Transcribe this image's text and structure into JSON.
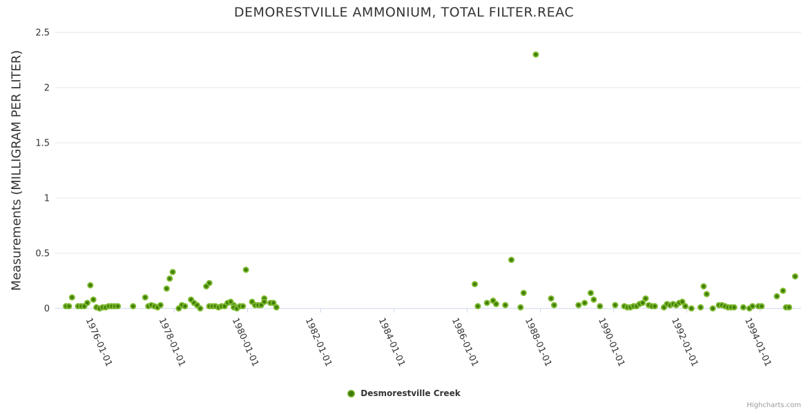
{
  "chart": {
    "title": "DEMORESTVILLE AMMONIUM, TOTAL FILTER.REAC",
    "credits": "Highcharts.com"
  },
  "legend": {
    "label": "Desmorestville Creek"
  },
  "colors": {
    "marker_outer": "#7cb82e",
    "marker_inner": "#3d7a06",
    "grid": "#e6e6e6",
    "axis_line": "#ccd6eb",
    "title_text": "#333333",
    "axis_text": "#333333",
    "credits_text": "#999999",
    "background": "#ffffff"
  },
  "chart_data": {
    "type": "scatter",
    "title": "DEMORESTVILLE AMMONIUM, TOTAL FILTER.REAC",
    "xlabel": "",
    "ylabel": "Measurements (MILLIGRAM PER LITER)",
    "legend_position": "bottom-center",
    "grid": true,
    "x_tick_labels": [
      "1976-01-01",
      "1978-01-01",
      "1980-01-01",
      "1982-01-01",
      "1984-01-01",
      "1986-01-01",
      "1988-01-01",
      "1990-01-01",
      "1992-01-01",
      "1994-01-01"
    ],
    "x_tick_years": [
      1976,
      1978,
      1980,
      1982,
      1984,
      1986,
      1988,
      1990,
      1992,
      1994
    ],
    "y_ticks": [
      0,
      0.5,
      1,
      1.5,
      2,
      2.5
    ],
    "ylim": [
      0,
      2.5
    ],
    "xlim_years": [
      1974.75,
      1995.12
    ],
    "series": [
      {
        "name": "Desmorestville Creek",
        "points": [
          [
            "1975-01",
            0.02
          ],
          [
            "1975-02",
            0.02
          ],
          [
            "1975-03",
            0.1
          ],
          [
            "1975-05",
            0.02
          ],
          [
            "1975-06",
            0.02
          ],
          [
            "1975-07",
            0.02
          ],
          [
            "1975-08",
            0.05
          ],
          [
            "1975-09",
            0.21
          ],
          [
            "1975-10",
            0.08
          ],
          [
            "1975-11",
            0.01
          ],
          [
            "1975-12",
            0
          ],
          [
            "1976-01",
            0.01
          ],
          [
            "1976-02",
            0.01
          ],
          [
            "1976-03",
            0.02
          ],
          [
            "1976-04",
            0.02
          ],
          [
            "1976-05",
            0.02
          ],
          [
            "1976-06",
            0.02
          ],
          [
            "1976-11",
            0.02
          ],
          [
            "1977-03",
            0.1
          ],
          [
            "1977-04",
            0.02
          ],
          [
            "1977-05",
            0.03
          ],
          [
            "1977-06",
            0.02
          ],
          [
            "1977-07",
            0.01
          ],
          [
            "1977-08",
            0.03
          ],
          [
            "1977-10",
            0.18
          ],
          [
            "1977-11",
            0.27
          ],
          [
            "1977-12",
            0.33
          ],
          [
            "1978-02",
            0
          ],
          [
            "1978-03",
            0.03
          ],
          [
            "1978-04",
            0.02
          ],
          [
            "1978-06",
            0.08
          ],
          [
            "1978-07",
            0.05
          ],
          [
            "1978-08",
            0.03
          ],
          [
            "1978-09",
            0
          ],
          [
            "1978-11",
            0.2
          ],
          [
            "1978-12",
            0.23
          ],
          [
            "1978-12",
            0.02
          ],
          [
            "1979-01",
            0.02
          ],
          [
            "1979-02",
            0.02
          ],
          [
            "1979-03",
            0.01
          ],
          [
            "1979-04",
            0.02
          ],
          [
            "1979-05",
            0.02
          ],
          [
            "1979-06",
            0.05
          ],
          [
            "1979-07",
            0.06
          ],
          [
            "1979-08",
            0.03
          ],
          [
            "1979-08",
            0.01
          ],
          [
            "1979-09",
            0
          ],
          [
            "1979-10",
            0.02
          ],
          [
            "1979-11",
            0.02
          ],
          [
            "1979-12",
            0.35
          ],
          [
            "1980-02",
            0.06
          ],
          [
            "1980-03",
            0.03
          ],
          [
            "1980-04",
            0.03
          ],
          [
            "1980-05",
            0.03
          ],
          [
            "1980-06",
            0.09
          ],
          [
            "1980-06",
            0.06
          ],
          [
            "1980-08",
            0.05
          ],
          [
            "1980-09",
            0.05
          ],
          [
            "1980-10",
            0.01
          ],
          [
            "1986-03",
            0.22
          ],
          [
            "1986-04",
            0.02
          ],
          [
            "1986-07",
            0.05
          ],
          [
            "1986-09",
            0.07
          ],
          [
            "1986-10",
            0.04
          ],
          [
            "1987-01",
            0.03
          ],
          [
            "1987-03",
            0.44
          ],
          [
            "1987-06",
            0.01
          ],
          [
            "1987-07",
            0.14
          ],
          [
            "1987-11",
            2.3
          ],
          [
            "1988-04",
            0.09
          ],
          [
            "1988-05",
            0.03
          ],
          [
            "1989-01",
            0.03
          ],
          [
            "1989-03",
            0.05
          ],
          [
            "1989-05",
            0.14
          ],
          [
            "1989-06",
            0.08
          ],
          [
            "1989-08",
            0.02
          ],
          [
            "1990-01",
            0.03
          ],
          [
            "1990-04",
            0.02
          ],
          [
            "1990-05",
            0.01
          ],
          [
            "1990-06",
            0.01
          ],
          [
            "1990-07",
            0.02
          ],
          [
            "1990-08",
            0.02
          ],
          [
            "1990-09",
            0.04
          ],
          [
            "1990-10",
            0.05
          ],
          [
            "1990-11",
            0.09
          ],
          [
            "1990-12",
            0.03
          ],
          [
            "1991-01",
            0.02
          ],
          [
            "1991-02",
            0.02
          ],
          [
            "1991-05",
            0.01
          ],
          [
            "1991-06",
            0.04
          ],
          [
            "1991-07",
            0.03
          ],
          [
            "1991-08",
            0.04
          ],
          [
            "1991-09",
            0.03
          ],
          [
            "1991-10",
            0.05
          ],
          [
            "1991-11",
            0.06
          ],
          [
            "1991-12",
            0.02
          ],
          [
            "1992-02",
            0
          ],
          [
            "1992-05",
            0.01
          ],
          [
            "1992-06",
            0.2
          ],
          [
            "1992-07",
            0.13
          ],
          [
            "1992-09",
            0
          ],
          [
            "1992-11",
            0.03
          ],
          [
            "1992-12",
            0.03
          ],
          [
            "1993-01",
            0.02
          ],
          [
            "1993-02",
            0.01
          ],
          [
            "1993-03",
            0.01
          ],
          [
            "1993-04",
            0.01
          ],
          [
            "1993-07",
            0.01
          ],
          [
            "1993-09",
            0
          ],
          [
            "1993-10",
            0.02
          ],
          [
            "1993-12",
            0.02
          ],
          [
            "1994-01",
            0.02
          ],
          [
            "1994-06",
            0.11
          ],
          [
            "1994-08",
            0.16
          ],
          [
            "1994-09",
            0.01
          ],
          [
            "1994-10",
            0.01
          ],
          [
            "1994-12",
            0.29
          ]
        ]
      }
    ]
  }
}
